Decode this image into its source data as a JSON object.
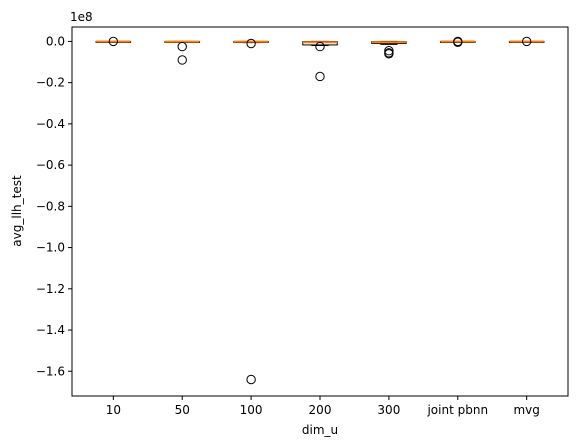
{
  "chart_data": {
    "type": "box",
    "xlabel": "dim_u",
    "ylabel": "avg_llh_test",
    "y_offset_label": "1e8",
    "y_scale": 100000000,
    "ylim": [
      -1.72,
      0.07
    ],
    "y_ticks": [
      0.0,
      -0.2,
      -0.4,
      -0.6,
      -0.8,
      -1.0,
      -1.2,
      -1.4,
      -1.6
    ],
    "y_tick_labels": [
      "0.0",
      "−0.2",
      "−0.4",
      "−0.6",
      "−0.8",
      "−1.0",
      "−1.2",
      "−1.4",
      "−1.6"
    ],
    "categories": [
      "10",
      "50",
      "100",
      "200",
      "300",
      "joint pbnn",
      "mvg"
    ],
    "median_color": "#ff7f0e",
    "grid": false,
    "boxes": [
      {
        "category": "10",
        "q1": -0.002,
        "median": -0.0005,
        "q3": -0.0001,
        "whisker_low": -0.003,
        "whisker_high": 0.0,
        "outliers": [
          0.0
        ]
      },
      {
        "category": "50",
        "q1": -0.003,
        "median": -0.001,
        "q3": -0.0002,
        "whisker_low": -0.005,
        "whisker_high": 0.0,
        "outliers": [
          -0.025,
          -0.09
        ]
      },
      {
        "category": "100",
        "q1": -0.003,
        "median": -0.001,
        "q3": -0.0002,
        "whisker_low": -0.006,
        "whisker_high": 0.0,
        "outliers": [
          -0.01,
          -1.64
        ]
      },
      {
        "category": "200",
        "q1": -0.017,
        "median": -0.004,
        "q3": -0.0005,
        "whisker_low": -0.02,
        "whisker_high": 0.0,
        "outliers": [
          -0.025,
          -0.17
        ]
      },
      {
        "category": "300",
        "q1": -0.01,
        "median": -0.004,
        "q3": -0.001,
        "whisker_low": -0.014,
        "whisker_high": 0.0,
        "outliers": [
          -0.045,
          -0.055,
          -0.06
        ]
      },
      {
        "category": "joint pbnn",
        "q1": -0.002,
        "median": -0.0005,
        "q3": -0.0001,
        "whisker_low": -0.003,
        "whisker_high": 0.0,
        "outliers": [
          0.0,
          -0.004
        ]
      },
      {
        "category": "mvg",
        "q1": -0.002,
        "median": -0.0005,
        "q3": -0.0001,
        "whisker_low": -0.003,
        "whisker_high": 0.0,
        "outliers": [
          0.0
        ]
      }
    ]
  }
}
